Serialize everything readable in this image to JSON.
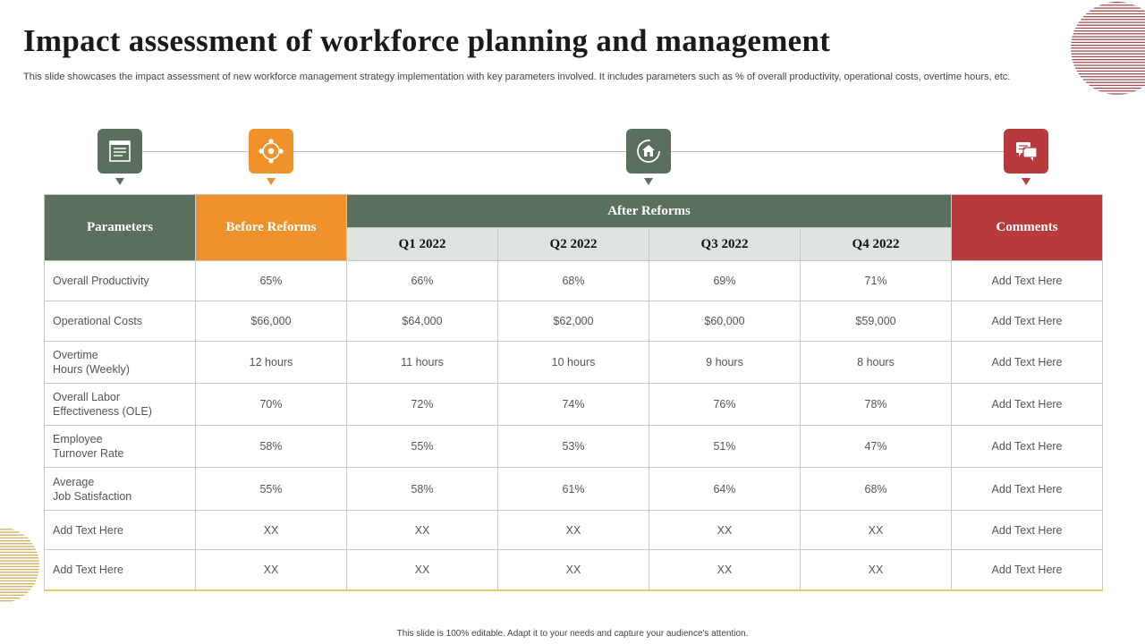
{
  "slide": {
    "title": "Impact assessment of workforce planning and management",
    "subtitle": "This slide showcases the impact assessment of new workforce management strategy implementation with key parameters involved. It includes parameters such as % of overall productivity, operational costs, overtime hours, etc.",
    "footer": "This slide is 100% editable.  Adapt it to your needs and capture your audience's attention."
  },
  "colors": {
    "green": "#5b6f5e",
    "orange": "#f0922b",
    "red": "#b93a3b",
    "light": "#dde3de",
    "accent_line": "#f0c66a"
  },
  "icons": [
    "document-list-icon",
    "network-nodes-icon",
    "home-refresh-icon",
    "chat-bubbles-icon"
  ],
  "table": {
    "headers": {
      "parameters": "Parameters",
      "before": "Before Reforms",
      "after": "After Reforms",
      "comments": "Comments",
      "quarters": [
        "Q1 2022",
        "Q2 2022",
        "Q3 2022",
        "Q4 2022"
      ]
    },
    "rows": [
      {
        "param": "Overall  Productivity",
        "before": "65%",
        "q1": "66%",
        "q2": "68%",
        "q3": "69%",
        "q4": "71%",
        "comment": "Add Text Here"
      },
      {
        "param": "Operational  Costs",
        "before": "$66,000",
        "q1": "$64,000",
        "q2": "$62,000",
        "q3": "$60,000",
        "q4": "$59,000",
        "comment": "Add Text Here"
      },
      {
        "param": "Overtime\nHours  (Weekly)",
        "before": "12 hours",
        "q1": "11 hours",
        "q2": "10 hours",
        "q3": "9 hours",
        "q4": "8 hours",
        "comment": "Add Text Here"
      },
      {
        "param": "Overall  Labor\nEffectiveness  (OLE)",
        "before": "70%",
        "q1": "72%",
        "q2": "74%",
        "q3": "76%",
        "q4": "78%",
        "comment": "Add Text Here"
      },
      {
        "param": "Employee\nTurnover   Rate",
        "before": "58%",
        "q1": "55%",
        "q2": "53%",
        "q3": "51%",
        "q4": "47%",
        "comment": "Add Text Here"
      },
      {
        "param": "Average\nJob Satisfaction",
        "before": "55%",
        "q1": "58%",
        "q2": "61%",
        "q3": "64%",
        "q4": "68%",
        "comment": "Add Text Here"
      },
      {
        "param": "Add Text Here",
        "before": "XX",
        "q1": "XX",
        "q2": "XX",
        "q3": "XX",
        "q4": "XX",
        "comment": "Add Text Here"
      },
      {
        "param": "Add Text Here",
        "before": "XX",
        "q1": "XX",
        "q2": "XX",
        "q3": "XX",
        "q4": "XX",
        "comment": "Add Text Here"
      }
    ]
  }
}
